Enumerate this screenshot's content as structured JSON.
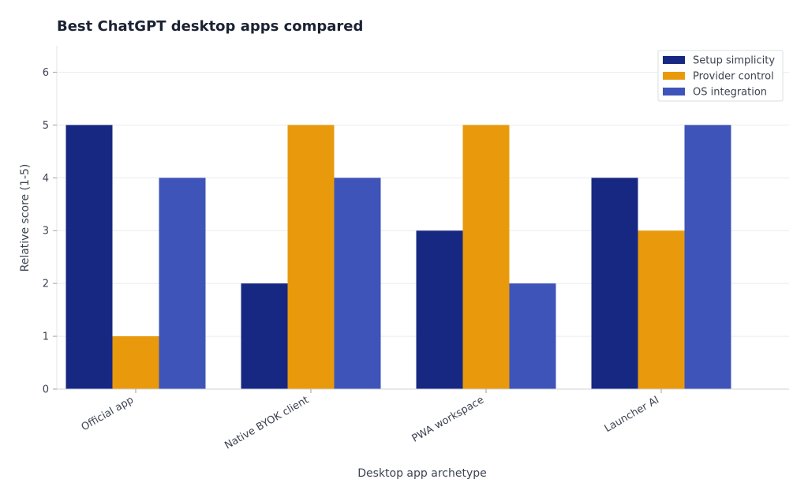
{
  "chart_data": {
    "type": "bar",
    "title": "Best ChatGPT desktop apps compared",
    "xlabel": "Desktop app archetype",
    "ylabel": "Relative score (1-5)",
    "categories": [
      "Official app",
      "Native BYOK client",
      "PWA workspace",
      "Launcher AI"
    ],
    "series": [
      {
        "name": "Setup simplicity",
        "values": [
          5,
          2,
          3,
          4
        ],
        "color": "#172883"
      },
      {
        "name": "Provider control",
        "values": [
          1,
          5,
          5,
          3
        ],
        "color": "#e99a0c"
      },
      {
        "name": "OS integration",
        "values": [
          4,
          4,
          2,
          5
        ],
        "color": "#3e54b9"
      }
    ],
    "ylim": [
      0,
      6.5
    ],
    "yticks": [
      0,
      1,
      2,
      3,
      4,
      5,
      6
    ],
    "grid": true,
    "legend_position": "top-right"
  }
}
